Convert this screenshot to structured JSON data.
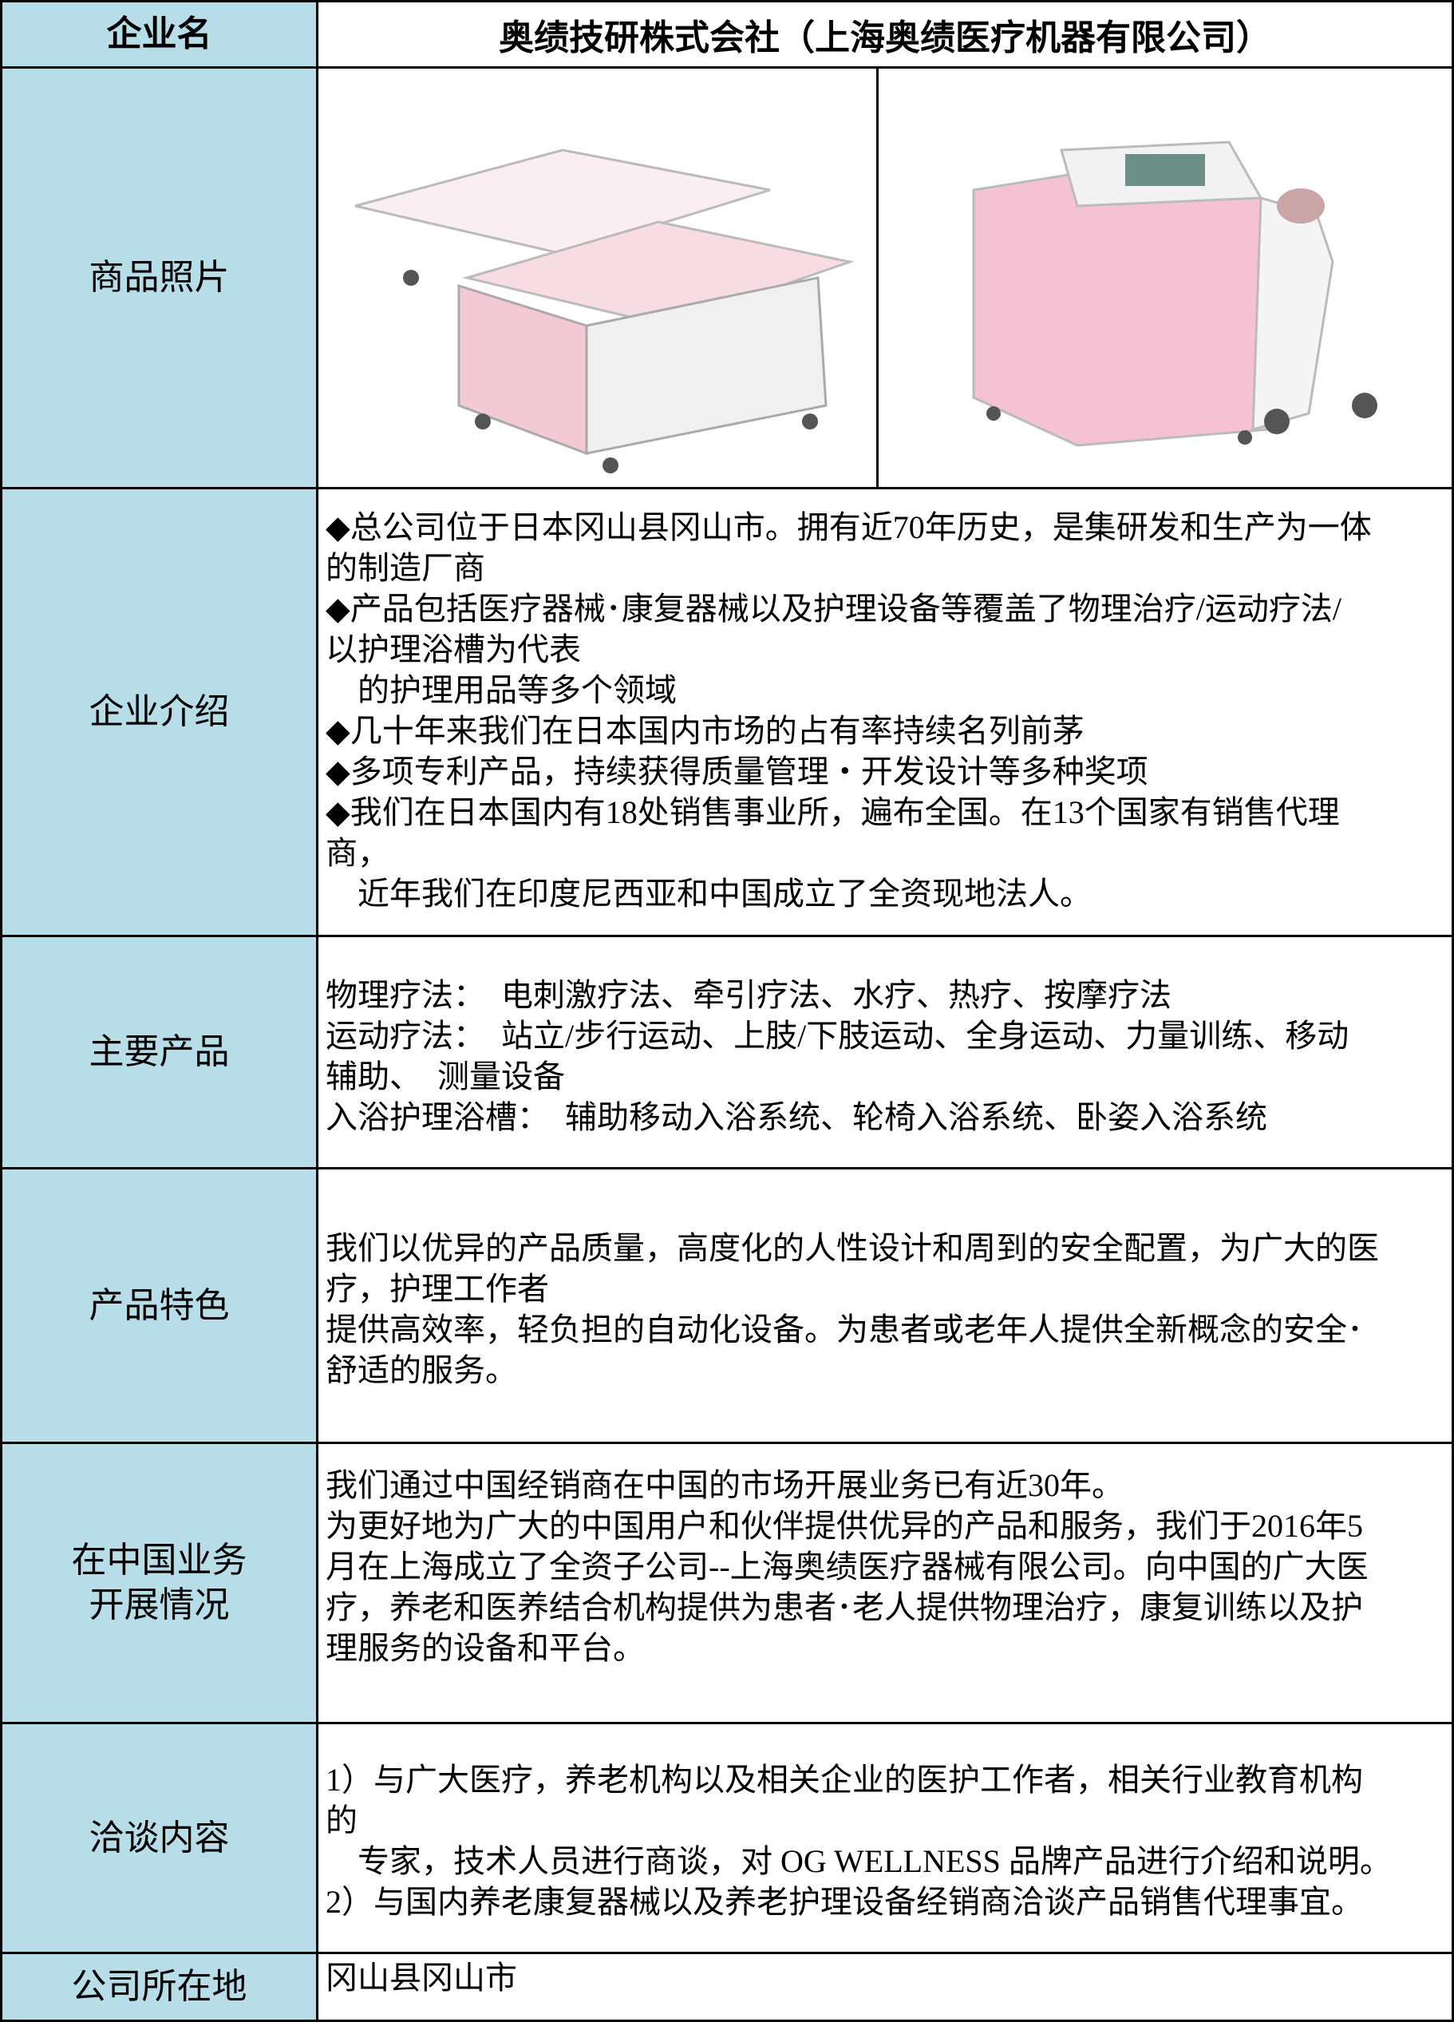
{
  "header": {
    "label": "企业名",
    "company": "奥绩技研株式会社（上海奥绩医疗机器有限公司）"
  },
  "rows": [
    {
      "label": "商品照片"
    },
    {
      "label": "企业介绍",
      "lines": [
        "◆总公司位于日本冈山县冈山市。拥有近70年历史，是集研发和生产为一体",
        "的制造厂商",
        "◆产品包括医疗器械･康复器械以及护理设备等覆盖了物理治疗/运动疗法/",
        "以护理浴槽为代表",
        "　的护理用品等多个领域",
        "◆几十年来我们在日本国内市场的占有率持续名列前茅",
        "◆多项专利产品，持续获得质量管理・开发设计等多种奖项",
        "◆我们在日本国内有18处销售事业所，遍布全国。在13个国家有销售代理",
        "商，",
        "　近年我们在印度尼西亚和中国成立了全资现地法人。"
      ]
    },
    {
      "label": "主要产品",
      "lines": [
        "物理疗法：　电刺激疗法、牵引疗法、水疗、热疗、按摩疗法",
        "运动疗法：　站立/步行运动、上肢/下肢运动、全身运动、力量训练、移动",
        "辅助、　测量设备",
        "入浴护理浴槽：　辅助移动入浴系统、轮椅入浴系统、卧姿入浴系统"
      ]
    },
    {
      "label": "产品特色",
      "lines": [
        "我们以优异的产品质量，高度化的人性设计和周到的安全配置，为广大的医",
        "疗，护理工作者",
        "提供高效率，轻负担的自动化设备。为患者或老年人提供全新概念的安全･",
        "舒适的服务。"
      ]
    },
    {
      "label": "在中国业务\n开展情况",
      "lines": [
        "我们通过中国经销商在中国的市场开展业务已有近30年。",
        "为更好地为广大的中国用户和伙伴提供优异的产品和服务，我们于2016年5",
        "月在上海成立了全资子公司--上海奥绩医疗器械有限公司。向中国的广大医",
        "疗，养老和医养结合机构提供为患者･老人提供物理治疗，康复训练以及护",
        "理服务的设备和平台。"
      ]
    },
    {
      "label": "洽谈内容",
      "lines": [
        "1）与广大医疗，养老机构以及相关企业的医护工作者，相关行业教育机构",
        "的",
        "　专家，技术人员进行商谈，对 OG WELLNESS 品牌产品进行介绍和说明。",
        "2）与国内养老康复器械以及养老护理设备经销商洽谈产品销售代理事宜。"
      ]
    },
    {
      "label": "公司所在地",
      "lines": [
        "冈山县冈山市"
      ]
    }
  ]
}
